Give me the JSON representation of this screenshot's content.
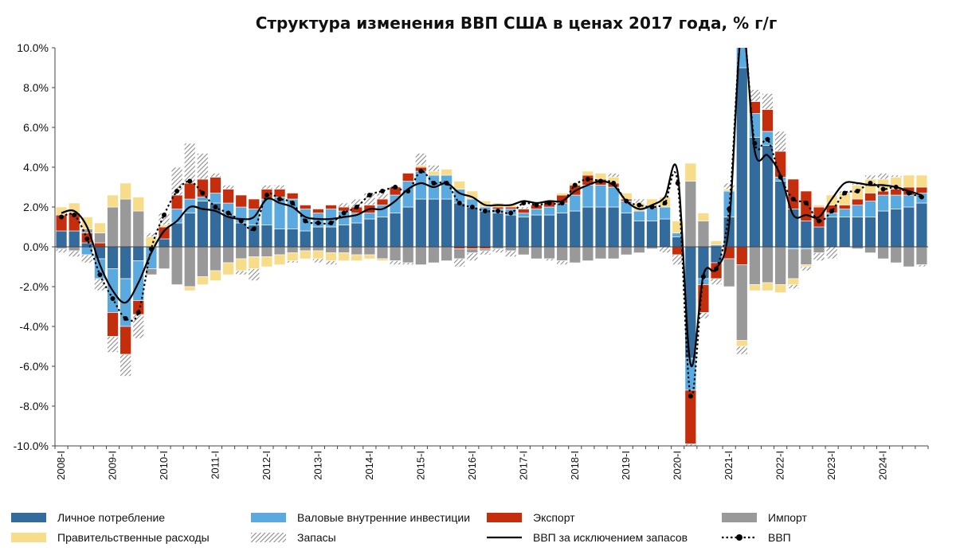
{
  "chart_data": {
    "type": "bar",
    "title": "Структура изменения ВВП США в ценах 2017 года, % г/г",
    "ylim": [
      -10,
      10
    ],
    "y_ticks": [
      "10.0%",
      "8.0%",
      "6.0%",
      "4.0%",
      "2.0%",
      "0.0%",
      "-2.0%",
      "-4.0%",
      "-6.0%",
      "-8.0%",
      "-10.0%"
    ],
    "year_labels": [
      "2008-I",
      "2009-I",
      "2010-I",
      "2011-I",
      "2012-I",
      "2013-I",
      "2014-I",
      "2015-I",
      "2016-I",
      "2017-I",
      "2018-I",
      "2019-I",
      "2020-I",
      "2021-I",
      "2022-I",
      "2023-I",
      "2024-I"
    ],
    "categories": [
      "2008-I",
      "2008-II",
      "2008-III",
      "2008-IV",
      "2009-I",
      "2009-II",
      "2009-III",
      "2009-IV",
      "2010-I",
      "2010-II",
      "2010-III",
      "2010-IV",
      "2011-I",
      "2011-II",
      "2011-III",
      "2011-IV",
      "2012-I",
      "2012-II",
      "2012-III",
      "2012-IV",
      "2013-I",
      "2013-II",
      "2013-III",
      "2013-IV",
      "2014-I",
      "2014-II",
      "2014-III",
      "2014-IV",
      "2015-I",
      "2015-II",
      "2015-III",
      "2015-IV",
      "2016-I",
      "2016-II",
      "2016-III",
      "2016-IV",
      "2017-I",
      "2017-II",
      "2017-III",
      "2017-IV",
      "2018-I",
      "2018-II",
      "2018-III",
      "2018-IV",
      "2019-I",
      "2019-II",
      "2019-III",
      "2019-IV",
      "2020-I",
      "2020-II",
      "2020-III",
      "2020-IV",
      "2021-I",
      "2021-II",
      "2021-III",
      "2021-IV",
      "2022-I",
      "2022-II",
      "2022-III",
      "2022-IV",
      "2023-I",
      "2023-II",
      "2023-III",
      "2023-IV",
      "2024-I",
      "2024-II",
      "2024-III",
      "2024-IV"
    ],
    "legend_position": "bottom",
    "grid": false,
    "colors": {
      "consumption": "#336c9c",
      "investment": "#5aaae0",
      "exports": "#c42e0c",
      "imports": "#999999",
      "government": "#f7dc8a",
      "inventories": "#aaaaaa",
      "gdp_ex_inventories": "#000000",
      "gdp": "#000000"
    },
    "series": [
      {
        "key": "consumption",
        "name": "Личное потребление",
        "kind": "bar",
        "values": [
          0.8,
          0.8,
          0.2,
          -0.6,
          -1.1,
          -1.6,
          -0.7,
          0.0,
          0.4,
          1.2,
          1.7,
          2.3,
          2.2,
          1.6,
          1.2,
          1.1,
          1.1,
          0.9,
          0.9,
          0.8,
          1.0,
          1.0,
          1.1,
          1.2,
          1.4,
          1.5,
          1.7,
          2.0,
          2.4,
          2.4,
          2.4,
          2.2,
          2.0,
          1.8,
          1.7,
          1.6,
          1.5,
          1.6,
          1.6,
          1.7,
          1.8,
          2.0,
          2.0,
          2.0,
          1.7,
          1.3,
          1.3,
          1.4,
          0.5,
          -5.6,
          -1.6,
          -0.8,
          1.5,
          9.0,
          5.5,
          5.1,
          3.3,
          1.9,
          1.3,
          1.0,
          1.5,
          1.5,
          1.5,
          1.5,
          1.8,
          1.9,
          2.0,
          2.2
        ]
      },
      {
        "key": "investment",
        "name": "Валовые внутренние инвестиции",
        "kind": "bar",
        "values": [
          0.0,
          0.0,
          -0.4,
          -1.0,
          -2.2,
          -2.4,
          -2.0,
          -1.1,
          0.0,
          0.7,
          0.7,
          0.2,
          0.5,
          0.6,
          0.8,
          0.8,
          1.3,
          1.6,
          1.5,
          1.1,
          0.7,
          0.9,
          0.7,
          0.5,
          0.3,
          0.6,
          0.9,
          1.3,
          1.4,
          1.2,
          1.2,
          0.7,
          0.4,
          0.2,
          0.2,
          0.3,
          0.2,
          0.3,
          0.4,
          0.5,
          0.8,
          1.1,
          1.1,
          1.0,
          0.6,
          0.5,
          0.7,
          0.6,
          0.2,
          -1.6,
          -0.3,
          0.1,
          1.3,
          1.6,
          1.2,
          0.7,
          0.2,
          -0.1,
          -0.1,
          0.0,
          0.2,
          0.4,
          0.6,
          0.8,
          0.8,
          0.7,
          0.6,
          0.5
        ]
      },
      {
        "key": "exports",
        "name": "Экспорт",
        "kind": "bar",
        "values": [
          0.8,
          0.9,
          0.5,
          0.2,
          -1.2,
          -1.4,
          -0.7,
          0.0,
          0.6,
          0.7,
          0.8,
          0.9,
          0.8,
          0.7,
          0.6,
          0.5,
          0.5,
          0.4,
          0.3,
          0.2,
          0.2,
          0.2,
          0.2,
          0.3,
          0.4,
          0.3,
          0.4,
          0.4,
          0.2,
          0.0,
          0.0,
          -0.1,
          -0.1,
          -0.1,
          0.1,
          0.1,
          0.2,
          0.2,
          0.3,
          0.4,
          0.5,
          0.5,
          0.3,
          0.2,
          0.1,
          0.0,
          0.0,
          0.0,
          -0.4,
          -2.7,
          -1.4,
          -0.8,
          -0.6,
          -0.9,
          0.6,
          1.1,
          1.3,
          1.5,
          1.5,
          1.0,
          0.4,
          0.2,
          0.3,
          0.4,
          0.2,
          0.3,
          0.4,
          0.3
        ]
      },
      {
        "key": "imports",
        "name": "Импорт",
        "kind": "bar",
        "values": [
          -0.1,
          -0.2,
          0.2,
          0.5,
          2.0,
          2.4,
          1.8,
          -0.3,
          -1.1,
          -1.9,
          -2.0,
          -1.5,
          -1.2,
          -0.8,
          -0.6,
          -0.5,
          -0.5,
          -0.4,
          -0.3,
          -0.2,
          -0.2,
          -0.3,
          -0.3,
          -0.4,
          -0.4,
          -0.6,
          -0.7,
          -0.8,
          -0.9,
          -0.8,
          -0.7,
          -0.5,
          -0.2,
          -0.1,
          -0.1,
          -0.2,
          -0.4,
          -0.6,
          -0.6,
          -0.7,
          -0.8,
          -0.7,
          -0.6,
          -0.6,
          -0.4,
          -0.3,
          -0.1,
          0.0,
          0.0,
          3.3,
          1.3,
          0.0,
          -1.4,
          -3.8,
          -1.9,
          -1.8,
          -1.9,
          -1.5,
          -0.8,
          -0.3,
          0.0,
          0.0,
          -0.1,
          -0.3,
          -0.6,
          -0.8,
          -1.0,
          -0.9
        ]
      },
      {
        "key": "government",
        "name": "Правительственные расходы",
        "kind": "bar",
        "values": [
          0.4,
          0.5,
          0.6,
          0.5,
          0.6,
          0.8,
          0.7,
          0.5,
          0.1,
          0.0,
          -0.2,
          -0.4,
          -0.5,
          -0.6,
          -0.6,
          -0.6,
          -0.5,
          -0.5,
          -0.4,
          -0.4,
          -0.4,
          -0.4,
          -0.4,
          -0.3,
          -0.2,
          -0.1,
          0.0,
          0.0,
          0.1,
          0.2,
          0.3,
          0.4,
          0.4,
          0.3,
          0.2,
          0.1,
          0.0,
          0.0,
          0.0,
          0.1,
          0.1,
          0.2,
          0.3,
          0.3,
          0.3,
          0.4,
          0.4,
          0.5,
          0.6,
          0.9,
          0.4,
          0.2,
          0.1,
          -0.3,
          -0.3,
          -0.4,
          -0.4,
          -0.3,
          -0.1,
          0.1,
          0.5,
          0.6,
          0.7,
          0.7,
          0.6,
          0.6,
          0.6,
          0.6
        ]
      },
      {
        "key": "inventories",
        "name": "Запасы",
        "kind": "bar",
        "values": [
          -0.2,
          -0.3,
          -0.4,
          -0.6,
          -0.8,
          -1.1,
          -1.2,
          0.2,
          0.6,
          1.4,
          2.0,
          1.3,
          0.2,
          0.2,
          -0.2,
          -0.6,
          0.2,
          0.2,
          -0.1,
          0.0,
          -0.2,
          -0.2,
          0.2,
          0.4,
          0.6,
          0.3,
          -0.2,
          -0.1,
          0.6,
          0.3,
          0.0,
          -0.4,
          -0.4,
          -0.2,
          -0.2,
          -0.3,
          0.1,
          0.0,
          -0.1,
          -0.2,
          0.0,
          0.0,
          0.0,
          0.2,
          0.0,
          0.2,
          0.0,
          -0.3,
          -0.5,
          -0.2,
          -0.3,
          -0.3,
          0.3,
          -0.4,
          0.6,
          0.8,
          1.0,
          -0.2,
          -0.2,
          -0.4,
          -0.6,
          0.1,
          0.1,
          0.2,
          0.3,
          0.1,
          0.0,
          -0.1
        ]
      },
      {
        "key": "gdp_ex_inventories",
        "name": "ВВП за исключением запасов",
        "kind": "line",
        "values": [
          1.7,
          1.8,
          1.0,
          -0.9,
          -2.2,
          -2.8,
          -1.8,
          -0.3,
          0.8,
          1.3,
          2.0,
          1.9,
          1.8,
          1.5,
          1.4,
          1.5,
          2.4,
          2.2,
          2.0,
          1.5,
          1.4,
          1.4,
          1.5,
          1.6,
          1.9,
          1.9,
          2.3,
          2.9,
          3.2,
          3.0,
          3.2,
          2.7,
          2.5,
          2.1,
          2.1,
          2.1,
          2.3,
          2.2,
          2.3,
          2.3,
          2.8,
          3.1,
          3.3,
          3.1,
          2.3,
          1.9,
          2.1,
          2.5,
          3.7,
          -5.9,
          -1.4,
          -1.1,
          1.1,
          11.0,
          4.8,
          4.6,
          3.6,
          1.6,
          1.6,
          1.5,
          2.4,
          3.2,
          3.2,
          3.1,
          3.1,
          3.0,
          2.8,
          2.6
        ]
      },
      {
        "key": "gdp",
        "name": "ВВП",
        "kind": "line_dots",
        "values": [
          1.5,
          1.6,
          0.4,
          -1.4,
          -2.6,
          -3.6,
          -3.3,
          -0.1,
          1.6,
          2.8,
          3.3,
          2.7,
          2.0,
          1.7,
          1.3,
          0.9,
          2.6,
          2.4,
          2.2,
          1.3,
          1.2,
          1.2,
          1.7,
          2.0,
          2.6,
          2.8,
          3.0,
          2.8,
          3.8,
          3.2,
          3.2,
          2.2,
          2.0,
          1.8,
          1.8,
          1.7,
          2.2,
          2.1,
          2.2,
          2.2,
          3.1,
          3.4,
          3.3,
          3.2,
          2.3,
          2.1,
          2.0,
          2.2,
          3.2,
          -7.5,
          -1.5,
          -1.1,
          1.9,
          11.0,
          5.2,
          5.4,
          3.5,
          2.4,
          2.2,
          1.3,
          1.8,
          2.7,
          2.8,
          3.2,
          2.9,
          3.0,
          2.7,
          2.5
        ]
      }
    ]
  }
}
